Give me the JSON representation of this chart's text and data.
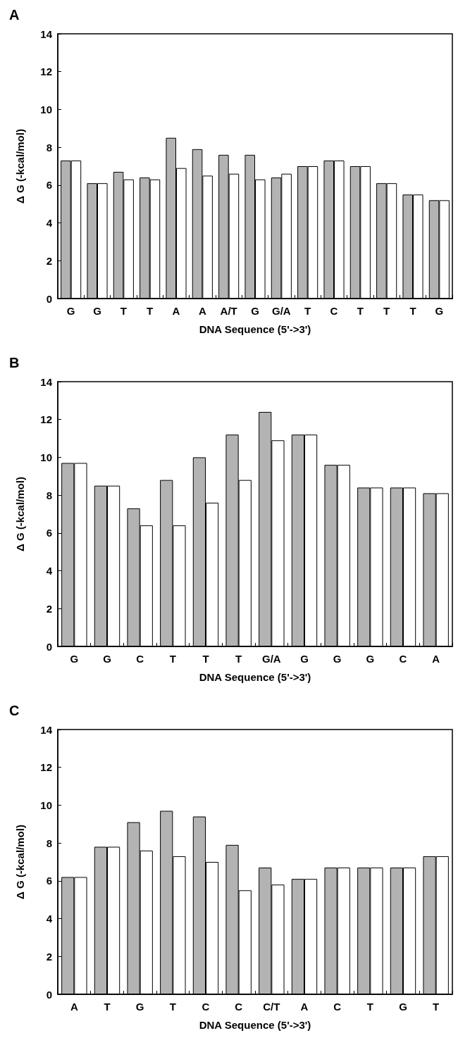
{
  "chart_data": [
    {
      "type": "bar",
      "title": "A",
      "xlabel": "DNA Sequence (5'->3')",
      "ylabel": "Δ G (-kcal/mol)",
      "categories": [
        "G",
        "G",
        "T",
        "T",
        "A",
        "A",
        "A/T",
        "G",
        "G/A",
        "T",
        "C",
        "T",
        "T",
        "T",
        "G"
      ],
      "ylim": [
        0,
        14
      ],
      "yticks": [
        0,
        2,
        4,
        6,
        8,
        10,
        12,
        14
      ],
      "series": [
        {
          "color": "#b3b3b3",
          "values": [
            7.3,
            6.1,
            6.7,
            6.4,
            8.5,
            7.9,
            7.6,
            7.6,
            6.4,
            7.0,
            7.3,
            7.0,
            6.1,
            5.5,
            5.2
          ]
        },
        {
          "color": "#ffffff",
          "values": [
            7.3,
            6.1,
            6.3,
            6.3,
            6.9,
            6.5,
            6.6,
            6.3,
            6.6,
            7.0,
            7.3,
            7.0,
            6.1,
            5.5,
            5.2
          ]
        }
      ]
    },
    {
      "type": "bar",
      "title": "B",
      "xlabel": "DNA Sequence (5'->3')",
      "ylabel": "Δ G (-kcal/mol)",
      "categories": [
        "G",
        "G",
        "C",
        "T",
        "T",
        "T",
        "G/A",
        "G",
        "G",
        "G",
        "C",
        "A"
      ],
      "ylim": [
        0,
        14
      ],
      "yticks": [
        0,
        2,
        4,
        6,
        8,
        10,
        12,
        14
      ],
      "series": [
        {
          "color": "#b3b3b3",
          "values": [
            9.7,
            8.5,
            7.3,
            8.8,
            10.0,
            11.2,
            12.4,
            11.2,
            9.6,
            8.4,
            8.4,
            8.1
          ]
        },
        {
          "color": "#ffffff",
          "values": [
            9.7,
            8.5,
            6.4,
            6.4,
            7.6,
            8.8,
            10.9,
            11.2,
            9.6,
            8.4,
            8.4,
            8.1
          ]
        }
      ]
    },
    {
      "type": "bar",
      "title": "C",
      "xlabel": "DNA Sequence (5'->3')",
      "ylabel": "Δ G (-kcal/mol)",
      "categories": [
        "A",
        "T",
        "G",
        "T",
        "C",
        "C",
        "C/T",
        "A",
        "C",
        "T",
        "G",
        "T"
      ],
      "ylim": [
        0,
        14
      ],
      "yticks": [
        0,
        2,
        4,
        6,
        8,
        10,
        12,
        14
      ],
      "series": [
        {
          "color": "#b3b3b3",
          "values": [
            6.2,
            7.8,
            9.1,
            9.7,
            9.4,
            7.9,
            6.7,
            6.1,
            6.7,
            6.7,
            6.7,
            7.3
          ]
        },
        {
          "color": "#ffffff",
          "values": [
            6.2,
            7.8,
            7.6,
            7.3,
            7.0,
            5.5,
            5.8,
            6.1,
            6.7,
            6.7,
            6.7,
            7.3
          ]
        }
      ]
    }
  ]
}
